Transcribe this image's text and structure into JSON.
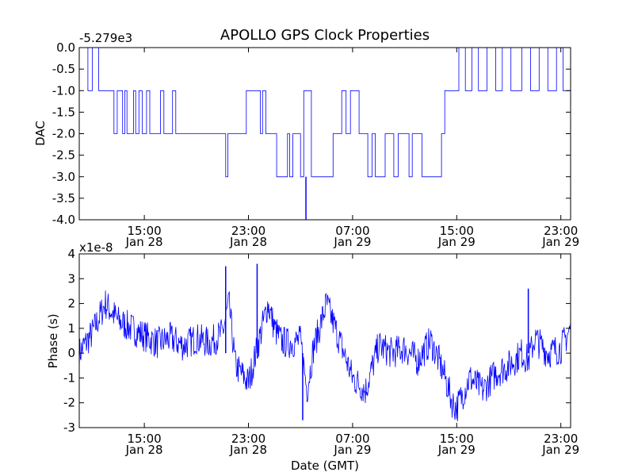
{
  "figure_title": "APOLLO GPS Clock Properties",
  "chart_data": [
    {
      "type": "line",
      "title": "APOLLO GPS Clock Properties",
      "xlabel": "",
      "ylabel": "DAC",
      "offset_label": "-5.279e3",
      "ylim": [
        -4.0,
        0.0
      ],
      "xlim": [
        "Jan 28 10:00",
        "Jan 29 23:45"
      ],
      "yticks": [
        "0.0",
        "-0.5",
        "-1.0",
        "-1.5",
        "-2.0",
        "-2.5",
        "-3.0",
        "-3.5",
        "-4.0"
      ],
      "xticks": [
        {
          "time": "15:00",
          "date": "Jan 28"
        },
        {
          "time": "23:00",
          "date": "Jan 28"
        },
        {
          "time": "07:00",
          "date": "Jan 29"
        },
        {
          "time": "15:00",
          "date": "Jan 29"
        },
        {
          "time": "23:00",
          "date": "Jan 29"
        }
      ],
      "grid": false,
      "series": [
        {
          "color": "#0000ff",
          "step": true,
          "x": [
            "Jan 28 10:00",
            "Jan 28 10:20",
            "Jan 28 10:40",
            "Jan 28 11:00",
            "Jan 28 11:15",
            "Jan 28 11:30",
            "Jan 28 12:40",
            "Jan 28 12:55",
            "Jan 28 13:20",
            "Jan 28 13:30",
            "Jan 28 13:40",
            "Jan 28 14:10",
            "Jan 28 14:20",
            "Jan 28 14:35",
            "Jan 28 14:50",
            "Jan 28 15:10",
            "Jan 28 15:25",
            "Jan 28 15:35",
            "Jan 28 16:15",
            "Jan 28 16:30",
            "Jan 28 17:10",
            "Jan 28 17:25",
            "Jan 28 21:05",
            "Jan 28 21:15",
            "Jan 28 21:25",
            "Jan 28 22:30",
            "Jan 28 22:50",
            "Jan 28 23:40",
            "Jan 28 23:55",
            "Jan 29 00:05",
            "Jan 29 00:20",
            "Jan 29 00:35",
            "Jan 29 01:10",
            "Jan 29 01:40",
            "Jan 29 02:00",
            "Jan 29 02:10",
            "Jan 29 02:25",
            "Jan 29 03:00",
            "Jan 29 03:15",
            "Jan 29 03:50",
            "Jan 29 04:30",
            "Jan 29 04:45",
            "Jan 29 05:30",
            "Jan 29 05:40",
            "Jan 29 06:10",
            "Jan 29 06:30",
            "Jan 29 06:50",
            "Jan 29 07:30",
            "Jan 29 08:10",
            "Jan 29 08:30",
            "Jan 29 08:45",
            "Jan 29 09:30",
            "Jan 29 10:10",
            "Jan 29 10:30",
            "Jan 29 11:20",
            "Jan 29 11:35",
            "Jan 29 12:20",
            "Jan 29 13:50",
            "Jan 29 14:05",
            "Jan 29 14:30",
            "Jan 29 15:10",
            "Jan 29 15:40",
            "Jan 29 16:10",
            "Jan 29 16:40",
            "Jan 29 17:20",
            "Jan 29 18:00",
            "Jan 29 18:30",
            "Jan 29 19:10",
            "Jan 29 20:00",
            "Jan 29 20:40",
            "Jan 29 21:20",
            "Jan 29 22:00",
            "Jan 29 22:40",
            "Jan 29 23:10",
            "Jan 29 23:45"
          ],
          "values": [
            0.0,
            0.0,
            -1.0,
            0.0,
            0.0,
            -1.0,
            -2.0,
            -1.0,
            -2.0,
            -1.0,
            -2.0,
            -1.0,
            -2.0,
            -1.0,
            -2.0,
            -1.0,
            -2.0,
            -2.0,
            -1.0,
            -2.0,
            -1.0,
            -2.0,
            -2.0,
            -3.0,
            -2.0,
            -2.0,
            -1.0,
            -1.0,
            -2.0,
            -1.0,
            -2.0,
            -2.0,
            -3.0,
            -3.0,
            -2.0,
            -3.0,
            -2.0,
            -3.0,
            -1.0,
            -3.0,
            -3.0,
            -3.0,
            -2.0,
            -2.0,
            -1.0,
            -2.0,
            -1.0,
            -2.0,
            -3.0,
            -2.0,
            -3.0,
            -2.0,
            -3.0,
            -2.0,
            -3.0,
            -2.0,
            -3.0,
            -2.0,
            -1.0,
            -1.0,
            0.0,
            -1.0,
            0.0,
            -1.0,
            0.0,
            -1.0,
            0.0,
            -1.0,
            0.0,
            -1.0,
            0.0,
            -1.0,
            0.0,
            -1.0,
            -1.0
          ],
          "spikes": [
            {
              "x": "Jan 29 03:25",
              "value": -4.0
            }
          ]
        }
      ]
    },
    {
      "type": "line",
      "title": "",
      "xlabel": "Date (GMT)",
      "ylabel": "Phase (s)",
      "offset_label": "x1e-8",
      "ylim": [
        -3,
        4
      ],
      "xlim": [
        "Jan 28 10:00",
        "Jan 29 23:45"
      ],
      "yticks": [
        "4",
        "3",
        "2",
        "1",
        "0",
        "-1",
        "-2",
        "-3"
      ],
      "xticks": [
        {
          "time": "15:00",
          "date": "Jan 28"
        },
        {
          "time": "23:00",
          "date": "Jan 28"
        },
        {
          "time": "07:00",
          "date": "Jan 29"
        },
        {
          "time": "15:00",
          "date": "Jan 29"
        },
        {
          "time": "23:00",
          "date": "Jan 29"
        }
      ],
      "grid": false,
      "series": [
        {
          "color": "#0000ff",
          "noisy": true,
          "x": [
            "Jan 28 10:00",
            "Jan 28 11:00",
            "Jan 28 12:00",
            "Jan 28 13:00",
            "Jan 28 14:00",
            "Jan 28 15:00",
            "Jan 28 16:00",
            "Jan 28 17:00",
            "Jan 28 18:00",
            "Jan 28 19:00",
            "Jan 28 20:00",
            "Jan 28 21:00",
            "Jan 28 21:30",
            "Jan 28 22:00",
            "Jan 28 23:00",
            "Jan 28 23:40",
            "Jan 29 00:30",
            "Jan 29 01:00",
            "Jan 29 01:30",
            "Jan 29 02:00",
            "Jan 29 03:00",
            "Jan 29 03:30",
            "Jan 29 04:00",
            "Jan 29 05:00",
            "Jan 29 06:00",
            "Jan 29 07:00",
            "Jan 29 08:00",
            "Jan 29 09:00",
            "Jan 29 10:00",
            "Jan 29 11:00",
            "Jan 29 12:00",
            "Jan 29 13:00",
            "Jan 29 14:00",
            "Jan 29 14:40",
            "Jan 29 15:00",
            "Jan 29 16:00",
            "Jan 29 17:00",
            "Jan 29 18:00",
            "Jan 29 19:00",
            "Jan 29 20:00",
            "Jan 29 20:30",
            "Jan 29 21:00",
            "Jan 29 22:00",
            "Jan 29 23:00",
            "Jan 29 23:45"
          ],
          "values": [
            0.0,
            0.8,
            2.0,
            1.3,
            1.0,
            0.7,
            0.4,
            0.6,
            0.3,
            0.6,
            0.4,
            0.8,
            2.0,
            -0.5,
            -1.2,
            0.2,
            2.0,
            1.0,
            0.5,
            0.4,
            0.5,
            -1.5,
            0.2,
            2.0,
            0.5,
            -1.0,
            -1.5,
            0.3,
            0.0,
            0.2,
            -0.3,
            0.5,
            -0.8,
            -2.0,
            -2.2,
            -1.0,
            -1.5,
            -0.8,
            -0.5,
            0.0,
            -0.3,
            0.6,
            0.0,
            0.2,
            1.0
          ],
          "spikes": [
            {
              "x": "Jan 28 21:15",
              "value": 3.5
            },
            {
              "x": "Jan 28 23:40",
              "value": 3.6
            },
            {
              "x": "Jan 29 03:10",
              "value": -2.7
            },
            {
              "x": "Jan 29 20:30",
              "value": 2.6
            }
          ]
        }
      ]
    }
  ]
}
